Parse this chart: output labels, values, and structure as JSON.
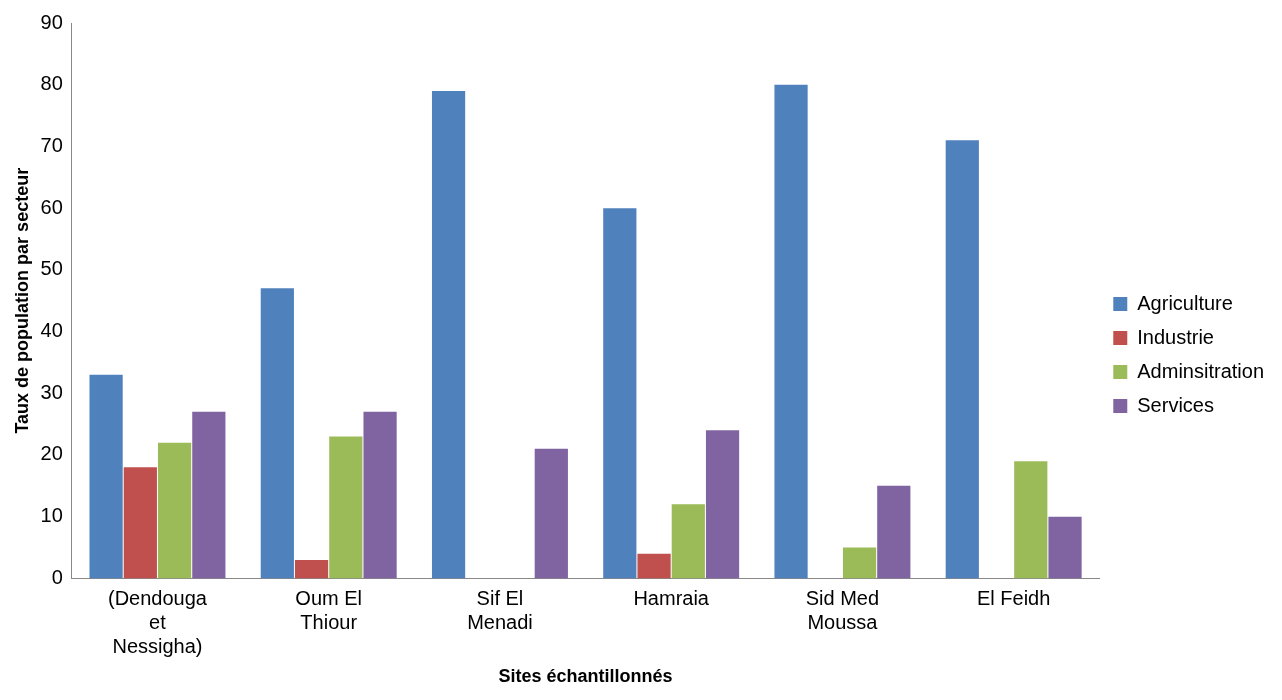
{
  "chart_data": {
    "type": "bar",
    "xlabel": "Sites échantillonnés",
    "ylabel": "Taux de population par secteur",
    "categories": [
      "(Dendouga et Nessigha)",
      "Oum El Thiour",
      "Sif El Menadi",
      "Hamraia",
      "Sid Med Moussa",
      "El Feidh"
    ],
    "series": [
      {
        "name": "Agriculture",
        "color": "#4f81bd",
        "values": [
          33,
          47,
          79,
          60,
          80,
          71
        ]
      },
      {
        "name": "Industrie",
        "color": "#c0504d",
        "values": [
          18,
          3,
          0,
          4,
          0,
          0
        ]
      },
      {
        "name": "Adminsitration",
        "color": "#9bbb59",
        "values": [
          22,
          23,
          0,
          12,
          5,
          19
        ]
      },
      {
        "name": "Services",
        "color": "#8064a2",
        "values": [
          27,
          27,
          21,
          24,
          15,
          10
        ]
      }
    ],
    "ylim": [
      0,
      90
    ],
    "yticks": [
      0,
      10,
      20,
      30,
      40,
      50,
      60,
      70,
      80,
      90
    ],
    "grid": false,
    "legend": "right"
  }
}
